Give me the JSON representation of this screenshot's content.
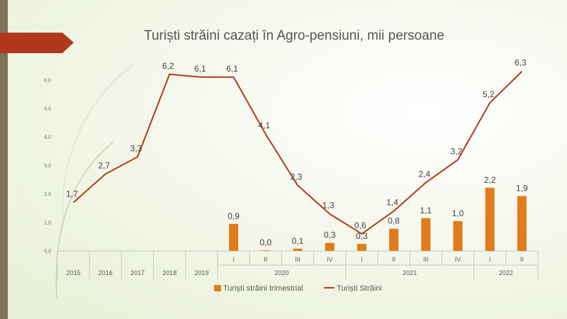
{
  "colors": {
    "bar": "#e07c1a",
    "line": "#b5391e",
    "side": "#7b7558",
    "banner": "#b2381d"
  },
  "chart_data": {
    "type": "bar+line",
    "title": "Turiști străini cazați în Agro-pensiuni, mii persoane",
    "ylim": [
      0,
      6.6
    ],
    "yticks": [
      "0,0",
      "1,0",
      "2,0",
      "3,0",
      "4,0",
      "5,0",
      "6,0"
    ],
    "categories": [
      "2015",
      "2016",
      "2017",
      "2018",
      "2019",
      "I",
      "II",
      "III",
      "IV",
      "I",
      "II",
      "III",
      "IV",
      "I",
      "II"
    ],
    "groups": [
      {
        "label": "2020",
        "start": 5,
        "end": 8
      },
      {
        "label": "2021",
        "start": 9,
        "end": 12
      },
      {
        "label": "2022",
        "start": 13,
        "end": 14
      }
    ],
    "series": [
      {
        "name": "Turiști străini trimestrial",
        "type": "bar",
        "values": [
          null,
          null,
          null,
          null,
          null,
          0.95,
          0.02,
          0.08,
          0.28,
          0.25,
          0.78,
          1.15,
          1.05,
          2.22,
          1.93
        ],
        "labels": [
          "",
          "",
          "",
          "",
          "",
          "0,9",
          "0,0",
          "0,1",
          "0,3",
          "0,3",
          "0,8",
          "1,1",
          "1,0",
          "2,2",
          "1,9"
        ]
      },
      {
        "name": "Turiști Străini",
        "type": "line",
        "values": [
          1.7,
          2.7,
          3.3,
          6.2,
          6.1,
          6.1,
          4.1,
          2.3,
          1.3,
          0.6,
          1.4,
          2.4,
          3.2,
          5.2,
          6.3
        ],
        "labels": [
          "1,7",
          "2,7",
          "3,3",
          "6,2",
          "6,1",
          "6,1",
          "4,1",
          "2,3",
          "1,3",
          "0,6",
          "1,4",
          "2,4",
          "3,2",
          "5,2",
          "6,3"
        ]
      }
    ],
    "grid": false,
    "legend": "bottom"
  }
}
